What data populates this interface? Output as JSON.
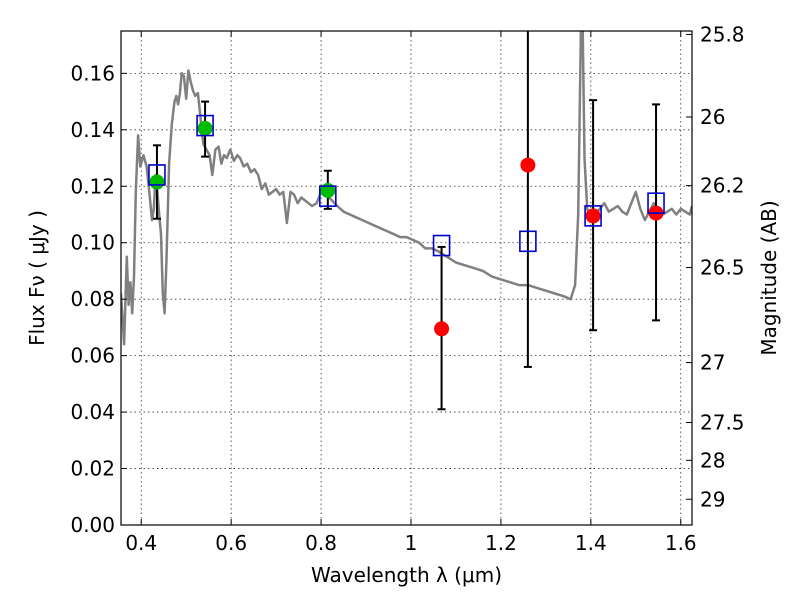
{
  "chart_data": {
    "type": "scatter",
    "xlabel": "Wavelength  λ (μm)",
    "ylabel": "Flux  Fν  ( μJy )",
    "y2label": "Magnitude (AB)",
    "xlim": [
      0.355,
      1.625
    ],
    "ylim": [
      0.0,
      0.175
    ],
    "xticks": [
      0.4,
      0.6,
      0.8,
      1.0,
      1.2,
      1.4,
      1.6
    ],
    "xtick_labels": [
      "0.4",
      "0.6",
      "0.8",
      "1",
      "1.2",
      "1.4",
      "1.6"
    ],
    "yticks": [
      0.0,
      0.02,
      0.04,
      0.06,
      0.08,
      0.1,
      0.12,
      0.14,
      0.16
    ],
    "ytick_labels": [
      "0.00",
      "0.02",
      "0.04",
      "0.06",
      "0.08",
      "0.10",
      "0.12",
      "0.14",
      "0.16"
    ],
    "mag_ticks": [
      25.8,
      26,
      26.2,
      26.5,
      27,
      27.5,
      28,
      29
    ],
    "mag_tick_labels": [
      "25.8",
      "26",
      "26.2",
      "26.5",
      "27",
      "27.5",
      "28",
      "29"
    ],
    "grid": true,
    "colors": {
      "spectrum": "#808080",
      "detection_green": "#00bb00",
      "detection_red": "#ff0000",
      "model_box": "#0000cc",
      "errorbar": "#000000"
    },
    "series": [
      {
        "kind": "errorbar-points",
        "color": "#00bb00",
        "points": [
          {
            "x": 0.435,
            "y": 0.1215,
            "ylo": 0.1085,
            "yhi": 0.1345
          },
          {
            "x": 0.542,
            "y": 0.1405,
            "ylo": 0.1305,
            "yhi": 0.15
          },
          {
            "x": 0.815,
            "y": 0.1185,
            "ylo": 0.112,
            "yhi": 0.1255
          }
        ]
      },
      {
        "kind": "errorbar-points",
        "color": "#ff0000",
        "points": [
          {
            "x": 1.068,
            "y": 0.0695,
            "ylo": 0.041,
            "yhi": 0.0985
          },
          {
            "x": 1.26,
            "y": 0.1275,
            "ylo": 0.056,
            "yhi": 0.18
          },
          {
            "x": 1.405,
            "y": 0.1095,
            "ylo": 0.069,
            "yhi": 0.1505
          },
          {
            "x": 1.545,
            "y": 0.1105,
            "ylo": 0.0725,
            "yhi": 0.149
          }
        ]
      },
      {
        "kind": "model-boxes",
        "color": "#0000cc",
        "points": [
          {
            "x": 0.435,
            "y": 0.124
          },
          {
            "x": 0.542,
            "y": 0.1415
          },
          {
            "x": 0.815,
            "y": 0.1165
          },
          {
            "x": 1.068,
            "y": 0.099
          },
          {
            "x": 1.26,
            "y": 0.1005
          },
          {
            "x": 1.405,
            "y": 0.1095
          },
          {
            "x": 1.545,
            "y": 0.114
          }
        ]
      },
      {
        "kind": "spectrum",
        "color": "#808080",
        "x": [
          0.355,
          0.362,
          0.368,
          0.372,
          0.376,
          0.38,
          0.384,
          0.388,
          0.393,
          0.398,
          0.405,
          0.412,
          0.418,
          0.424,
          0.428,
          0.432,
          0.436,
          0.44,
          0.444,
          0.448,
          0.452,
          0.456,
          0.462,
          0.468,
          0.474,
          0.478,
          0.482,
          0.486,
          0.49,
          0.495,
          0.5,
          0.505,
          0.51,
          0.515,
          0.52,
          0.526,
          0.532,
          0.538,
          0.545,
          0.552,
          0.558,
          0.565,
          0.572,
          0.578,
          0.584,
          0.59,
          0.598,
          0.606,
          0.614,
          0.62,
          0.628,
          0.636,
          0.644,
          0.652,
          0.66,
          0.668,
          0.676,
          0.684,
          0.692,
          0.7,
          0.708,
          0.716,
          0.724,
          0.732,
          0.74,
          0.748,
          0.756,
          0.764,
          0.772,
          0.78,
          0.79,
          0.8,
          0.812,
          0.824,
          0.836,
          0.85,
          0.864,
          0.878,
          0.892,
          0.906,
          0.92,
          0.934,
          0.948,
          0.962,
          0.976,
          0.99,
          1.004,
          1.018,
          1.032,
          1.046,
          1.06,
          1.08,
          1.1,
          1.12,
          1.14,
          1.16,
          1.18,
          1.2,
          1.22,
          1.24,
          1.26,
          1.28,
          1.3,
          1.32,
          1.34,
          1.355,
          1.365,
          1.372,
          1.378,
          1.382,
          1.386,
          1.392,
          1.4,
          1.41,
          1.42,
          1.43,
          1.44,
          1.45,
          1.46,
          1.47,
          1.48,
          1.49,
          1.5,
          1.51,
          1.52,
          1.53,
          1.54,
          1.55,
          1.56,
          1.57,
          1.58,
          1.59,
          1.6,
          1.61,
          1.62,
          1.625
        ],
        "y": [
          0.082,
          0.064,
          0.095,
          0.078,
          0.086,
          0.075,
          0.088,
          0.118,
          0.138,
          0.127,
          0.131,
          0.127,
          0.118,
          0.108,
          0.112,
          0.124,
          0.118,
          0.11,
          0.103,
          0.082,
          0.075,
          0.093,
          0.128,
          0.142,
          0.15,
          0.152,
          0.149,
          0.153,
          0.16,
          0.159,
          0.151,
          0.161,
          0.157,
          0.154,
          0.152,
          0.153,
          0.144,
          0.135,
          0.133,
          0.131,
          0.124,
          0.133,
          0.134,
          0.128,
          0.131,
          0.13,
          0.133,
          0.129,
          0.131,
          0.13,
          0.127,
          0.128,
          0.125,
          0.126,
          0.124,
          0.119,
          0.121,
          0.117,
          0.118,
          0.119,
          0.117,
          0.118,
          0.107,
          0.118,
          0.117,
          0.114,
          0.116,
          0.115,
          0.114,
          0.113,
          0.114,
          0.118,
          0.117,
          0.115,
          0.113,
          0.111,
          0.11,
          0.109,
          0.108,
          0.107,
          0.106,
          0.105,
          0.104,
          0.103,
          0.102,
          0.102,
          0.101,
          0.1,
          0.098,
          0.098,
          0.097,
          0.095,
          0.093,
          0.092,
          0.091,
          0.09,
          0.088,
          0.087,
          0.086,
          0.085,
          0.085,
          0.084,
          0.083,
          0.082,
          0.081,
          0.08,
          0.085,
          0.11,
          0.175,
          0.176,
          0.13,
          0.112,
          0.108,
          0.11,
          0.112,
          0.114,
          0.111,
          0.112,
          0.113,
          0.111,
          0.11,
          0.114,
          0.118,
          0.112,
          0.108,
          0.111,
          0.114,
          0.112,
          0.11,
          0.111,
          0.112,
          0.11,
          0.112,
          0.111,
          0.11,
          0.113
        ]
      }
    ]
  }
}
